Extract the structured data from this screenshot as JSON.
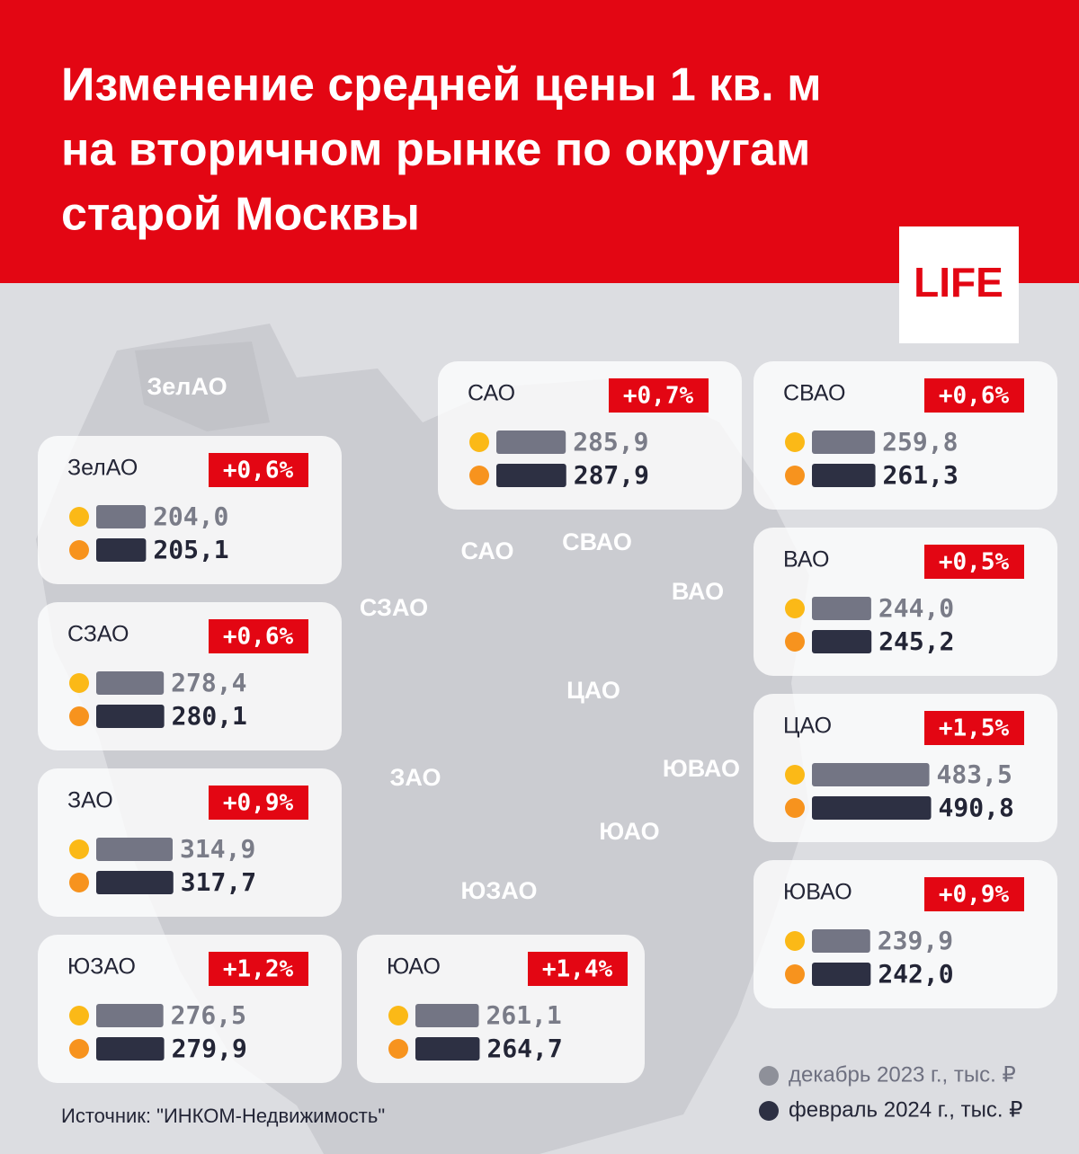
{
  "header": {
    "title_lines": [
      "Изменение средней цены 1 кв. м",
      "на вторичном рынке по округам",
      "старой Москвы"
    ],
    "brand": "LIFE"
  },
  "map_labels": [
    "ЗелАО",
    "САО",
    "СВАО",
    "СЗАО",
    "ВАО",
    "ЦАО",
    "ЮВАО",
    "ЗАО",
    "ЮАО",
    "ЮЗАО"
  ],
  "cards": [
    {
      "name": "ЗелАО",
      "change": "+0,6%",
      "dec": 204.0,
      "dec_label": "204,0",
      "feb": 205.1,
      "feb_label": "205,1"
    },
    {
      "name": "СЗАО",
      "change": "+0,6%",
      "dec": 278.4,
      "dec_label": "278,4",
      "feb": 280.1,
      "feb_label": "280,1"
    },
    {
      "name": "ЗАО",
      "change": "+0,9%",
      "dec": 314.9,
      "dec_label": "314,9",
      "feb": 317.7,
      "feb_label": "317,7"
    },
    {
      "name": "ЮЗАО",
      "change": "+1,2%",
      "dec": 276.5,
      "dec_label": "276,5",
      "feb": 279.9,
      "feb_label": "279,9"
    },
    {
      "name": "ЮАО",
      "change": "+1,4%",
      "dec": 261.1,
      "dec_label": "261,1",
      "feb": 264.7,
      "feb_label": "264,7"
    },
    {
      "name": "САО",
      "change": "+0,7%",
      "dec": 285.9,
      "dec_label": "285,9",
      "feb": 287.9,
      "feb_label": "287,9"
    },
    {
      "name": "СВАО",
      "change": "+0,6%",
      "dec": 259.8,
      "dec_label": "259,8",
      "feb": 261.3,
      "feb_label": "261,3"
    },
    {
      "name": "ВАО",
      "change": "+0,5%",
      "dec": 244.0,
      "dec_label": "244,0",
      "feb": 245.2,
      "feb_label": "245,2"
    },
    {
      "name": "ЦАО",
      "change": "+1,5%",
      "dec": 483.5,
      "dec_label": "483,5",
      "feb": 490.8,
      "feb_label": "490,8"
    },
    {
      "name": "ЮВАО",
      "change": "+0,9%",
      "dec": 239.9,
      "dec_label": "239,9",
      "feb": 242.0,
      "feb_label": "242,0"
    }
  ],
  "legend": {
    "dec": "декабрь 2023 г., тыс. ₽",
    "feb": "февраль 2024 г., тыс. ₽"
  },
  "source": "Источник: \"ИНКОМ-Недвижимость\""
}
